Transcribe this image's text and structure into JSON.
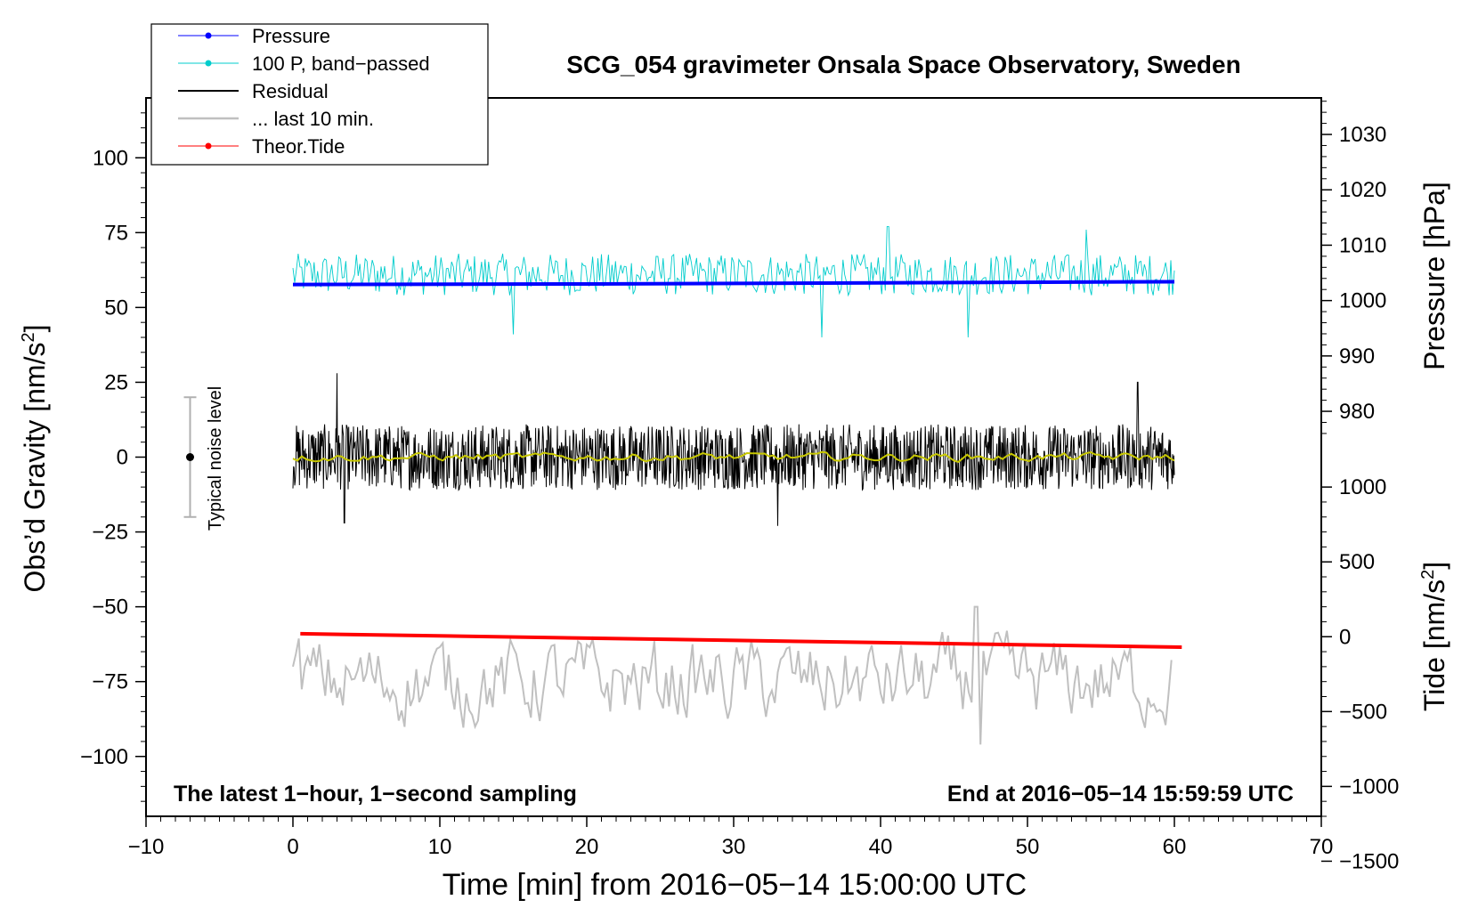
{
  "chart_data": {
    "type": "line",
    "title": "SCG_054 gravimeter Onsala Space Observatory, Sweden",
    "xlabel": "Time [min] from 2016−05−14 15:00:00 UTC",
    "ylabel_left": "Obs’d Gravity [nm/s",
    "ylabel_left_sup": "2",
    "ylabel_left_close": "]",
    "ylabel_right_pressure": "Pressure [hPa]",
    "ylabel_right_tide": "Tide [nm/s",
    "ylabel_right_tide_sup": "2",
    "ylabel_right_tide_close": "]",
    "xlim": [
      -10,
      70
    ],
    "ylim_left": [
      -120,
      120
    ],
    "x_ticks": [
      "−10",
      "0",
      "10",
      "20",
      "30",
      "40",
      "50",
      "60",
      "70"
    ],
    "x_tick_values": [
      -10,
      0,
      10,
      20,
      30,
      40,
      50,
      60,
      70
    ],
    "left_ticks": [
      "100",
      "75",
      "50",
      "25",
      "0",
      "−25",
      "−50",
      "−75",
      "−100"
    ],
    "left_tick_values": [
      100,
      75,
      50,
      25,
      0,
      -25,
      -50,
      -75,
      -100
    ],
    "pressure_ticks": [
      "1030",
      "1020",
      "1010",
      "1000",
      "990",
      "980"
    ],
    "pressure_tick_values": [
      1030,
      1020,
      1010,
      1000,
      990,
      980
    ],
    "pressure_scale": {
      "gravity_at_1000": 52.3,
      "nm_per_hPa": 1.85
    },
    "tide_ticks": [
      "1000",
      "500",
      "0",
      "−500",
      "−1000",
      "−1500"
    ],
    "tide_tick_values": [
      1000,
      500,
      0,
      -500,
      -1000,
      -1500
    ],
    "tide_scale": {
      "gravity_at_0": -60,
      "nm_per_unit": 0.05
    },
    "legend": [
      {
        "label": "Pressure",
        "color": "#0000ff",
        "marker": true
      },
      {
        "label": "100 P, band−passed",
        "color": "#00cccc",
        "marker": true
      },
      {
        "label": "Residual",
        "color": "#000000",
        "marker": false
      },
      {
        "label": "... last 10 min.",
        "color": "#c0c0c0",
        "marker": false
      },
      {
        "label": "Theor.Tide",
        "color": "#ff0000",
        "marker": true
      }
    ],
    "annotation_left": "The latest 1−hour, 1−second sampling",
    "annotation_right": "End at 2016−05−14 15:59:59 UTC",
    "noise_label": "Typical noise level",
    "noise_range": [
      -20,
      20
    ],
    "noise_x": -7,
    "series": [
      {
        "name": "Pressure",
        "color": "#0000ff",
        "x": [
          0,
          20,
          40,
          60
        ],
        "values": [
          1002.9,
          1003.0,
          1003.2,
          1003.4
        ]
      },
      {
        "name": "100 P, band-passed",
        "color": "#00cccc",
        "center": 61,
        "amplitude": 7,
        "spikes": [
          [
            15.0,
            41
          ],
          [
            36.0,
            40
          ],
          [
            40.5,
            77
          ],
          [
            46.0,
            40
          ],
          [
            54.0,
            76
          ]
        ]
      },
      {
        "name": "Residual",
        "color": "#000000",
        "center": 0,
        "amplitude": 11,
        "spikes": [
          [
            3.0,
            28
          ],
          [
            3.5,
            -22
          ],
          [
            33.0,
            -23
          ],
          [
            57.5,
            25
          ]
        ]
      },
      {
        "name": "Residual smoothed",
        "color": "#c8c800",
        "center": 0,
        "amplitude": 1.2
      },
      {
        "name": "... last 10 min.",
        "color": "#c0c0c0",
        "center": -75,
        "amplitude": 12,
        "spikes": [
          [
            46.5,
            -50
          ],
          [
            46.8,
            -96
          ]
        ]
      },
      {
        "name": "Theor.Tide",
        "color": "#ff0000",
        "x": [
          0.5,
          60.5
        ],
        "values": [
          20,
          -70
        ]
      }
    ]
  }
}
